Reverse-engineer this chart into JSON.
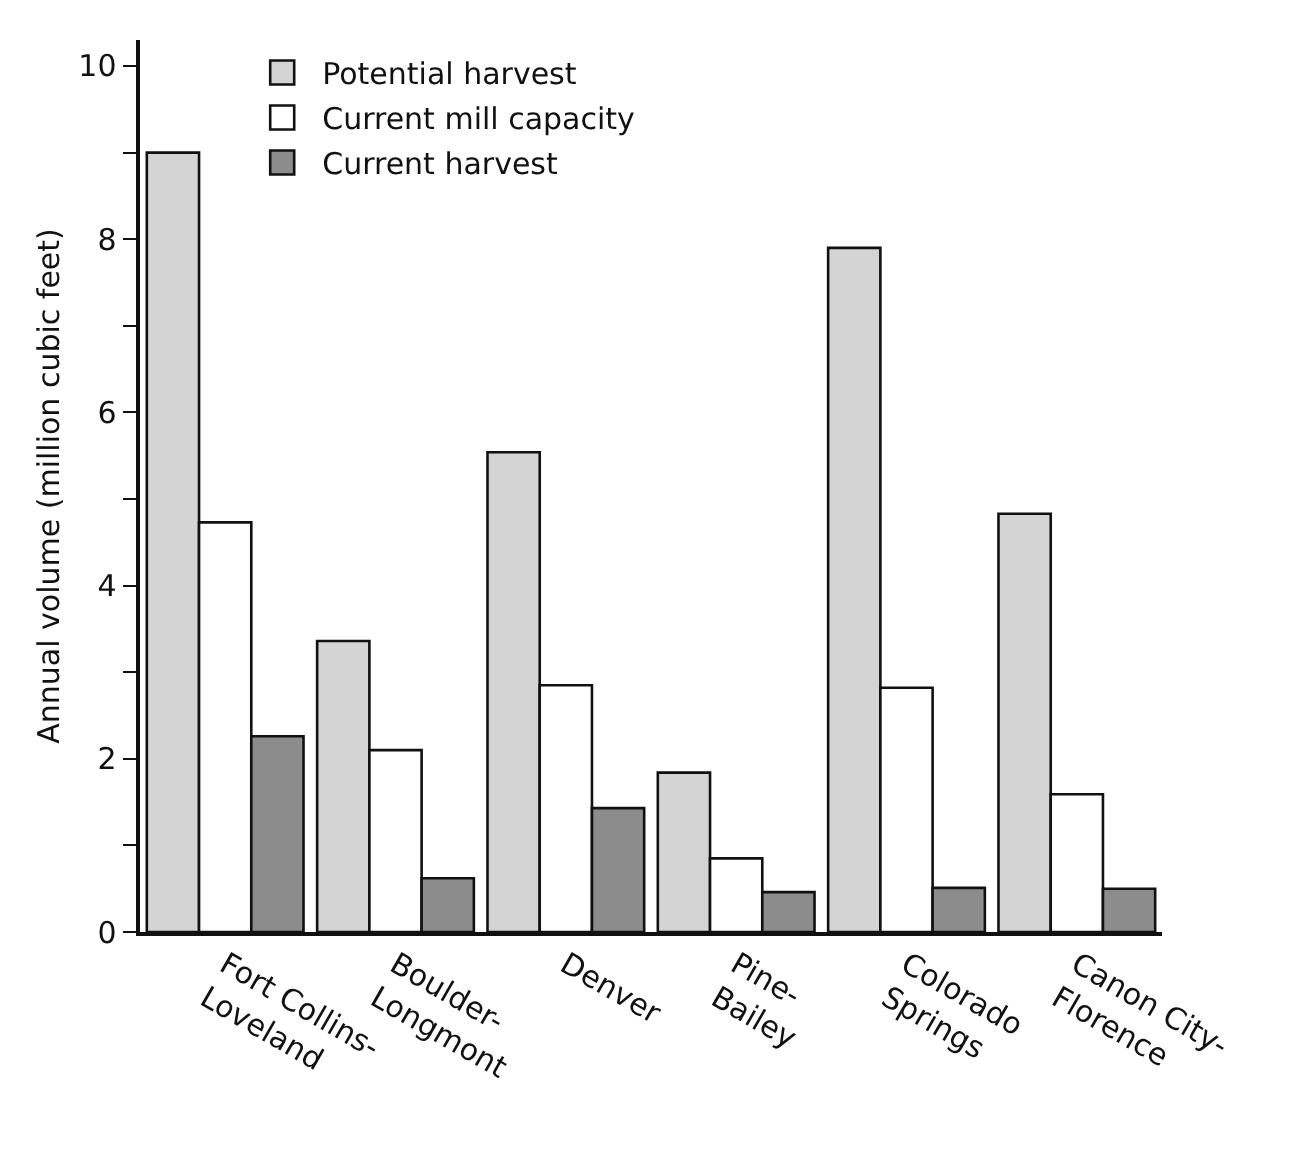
{
  "chart_data": {
    "type": "bar",
    "ylabel": "Annual volume (million cubic feet)",
    "categories": [
      "Fort Collins-\nLoveland",
      "Boulder-\nLongmont",
      "Denver",
      "Pine-\nBailey",
      "Colorado\nSprings",
      "Canon City-\nFlorence"
    ],
    "series": [
      {
        "name": "Potential harvest",
        "color": "#d4d4d4",
        "values": [
          9.0,
          3.36,
          5.54,
          1.84,
          7.9,
          4.83
        ]
      },
      {
        "name": "Current mill capacity",
        "color": "#ffffff",
        "values": [
          4.73,
          2.1,
          2.85,
          0.85,
          2.82,
          1.59
        ]
      },
      {
        "name": "Current harvest",
        "color": "#8c8c8c",
        "values": [
          2.26,
          0.62,
          1.43,
          0.46,
          0.51,
          0.5
        ]
      }
    ],
    "ylim": [
      0,
      10.3
    ],
    "yticks": [
      0,
      {
        "value": 1,
        "label": null
      },
      2,
      {
        "value": 3,
        "label": null
      },
      4,
      {
        "value": 5,
        "label": null
      },
      6,
      {
        "value": 7,
        "label": null
      },
      8,
      {
        "value": 9,
        "label": null
      },
      10
    ],
    "grid": false,
    "legend": "top left"
  }
}
